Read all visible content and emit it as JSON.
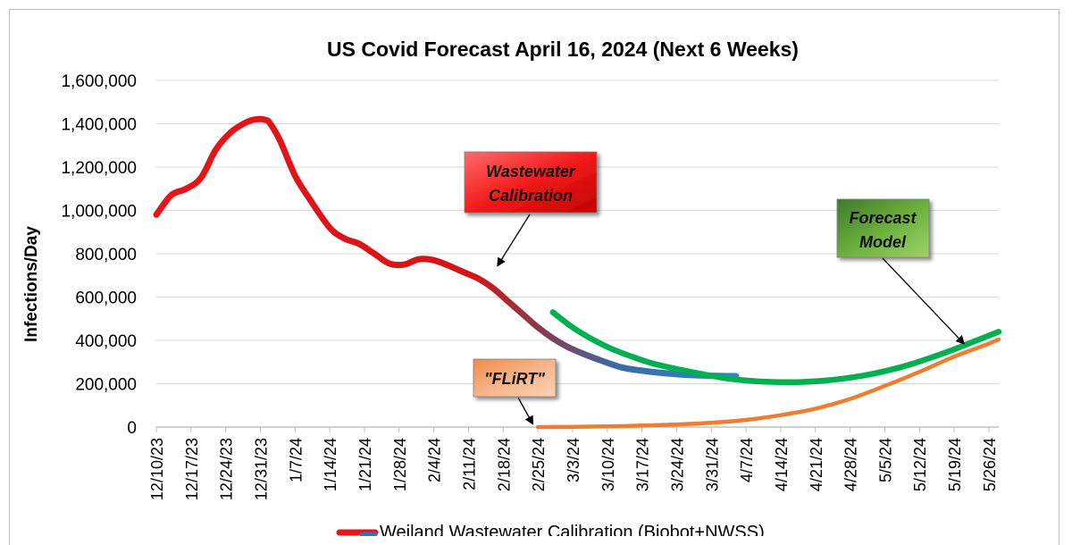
{
  "chart_data": {
    "type": "line",
    "title": "US Covid Forecast April 16, 2024 (Next 6 Weeks)",
    "ylabel": "Infections/Day",
    "xlabel": "",
    "ylim": [
      0,
      1600000
    ],
    "yticks": [
      {
        "value": 0,
        "label": "0"
      },
      {
        "value": 200000,
        "label": "200,000"
      },
      {
        "value": 400000,
        "label": "400,000"
      },
      {
        "value": 600000,
        "label": "600,000"
      },
      {
        "value": 800000,
        "label": "800,000"
      },
      {
        "value": 1000000,
        "label": "1,000,000"
      },
      {
        "value": 1200000,
        "label": "1,200,000"
      },
      {
        "value": 1400000,
        "label": "1,400,000"
      },
      {
        "value": 1600000,
        "label": "1,600,000"
      }
    ],
    "x_range_days": [
      0,
      170
    ],
    "xticks": [
      {
        "day": 0,
        "label": "12/10/23"
      },
      {
        "day": 7,
        "label": "12/17/23"
      },
      {
        "day": 14,
        "label": "12/24/23"
      },
      {
        "day": 21,
        "label": "12/31/23"
      },
      {
        "day": 28,
        "label": "1/7/24"
      },
      {
        "day": 35,
        "label": "1/14/24"
      },
      {
        "day": 42,
        "label": "1/21/24"
      },
      {
        "day": 49,
        "label": "1/28/24"
      },
      {
        "day": 56,
        "label": "2/4/24"
      },
      {
        "day": 63,
        "label": "2/11/24"
      },
      {
        "day": 70,
        "label": "2/18/24"
      },
      {
        "day": 77,
        "label": "2/25/24"
      },
      {
        "day": 84,
        "label": "3/3/24"
      },
      {
        "day": 91,
        "label": "3/10/24"
      },
      {
        "day": 98,
        "label": "3/17/24"
      },
      {
        "day": 105,
        "label": "3/24/24"
      },
      {
        "day": 112,
        "label": "3/31/24"
      },
      {
        "day": 119,
        "label": "4/7/24"
      },
      {
        "day": 126,
        "label": "4/14/24"
      },
      {
        "day": 133,
        "label": "4/21/24"
      },
      {
        "day": 140,
        "label": "4/28/24"
      },
      {
        "day": 147,
        "label": "5/5/24"
      },
      {
        "day": 154,
        "label": "5/12/24"
      },
      {
        "day": 161,
        "label": "5/19/24"
      },
      {
        "day": 168,
        "label": "5/26/24"
      }
    ],
    "series": [
      {
        "name": "Weiland Wastewater Calibration (Biobot+NWSS)",
        "color": "#e8141a",
        "color_end": "#2e75b6",
        "x": [
          0,
          3,
          6,
          9,
          12,
          15,
          18,
          20,
          22,
          23,
          25,
          28,
          31,
          35,
          38,
          41,
          44,
          47,
          50,
          53,
          56,
          59,
          62,
          65,
          68,
          71,
          74,
          77,
          80,
          83,
          86,
          90,
          94,
          98,
          102,
          106,
          110,
          114,
          117
        ],
        "values": [
          980000,
          1070000,
          1100000,
          1150000,
          1280000,
          1360000,
          1405000,
          1420000,
          1418000,
          1400000,
          1320000,
          1160000,
          1050000,
          920000,
          870000,
          845000,
          800000,
          755000,
          750000,
          775000,
          770000,
          745000,
          715000,
          685000,
          640000,
          580000,
          520000,
          460000,
          410000,
          370000,
          340000,
          305000,
          275000,
          260000,
          250000,
          242000,
          238000,
          236000,
          235000
        ]
      },
      {
        "name": "Forecast Model",
        "color": "#00b050",
        "x": [
          80,
          84,
          88,
          92,
          96,
          100,
          105,
          110,
          115,
          120,
          125,
          130,
          135,
          140,
          145,
          150,
          155,
          160,
          165,
          170
        ],
        "values": [
          530000,
          460000,
          405000,
          360000,
          325000,
          295000,
          268000,
          245000,
          225000,
          213000,
          208000,
          208000,
          215000,
          228000,
          248000,
          275000,
          310000,
          350000,
          395000,
          440000
        ]
      },
      {
        "name": "\"FLiRT\"",
        "color": "#ed7d31",
        "x": [
          77,
          84,
          91,
          98,
          105,
          112,
          119,
          126,
          133,
          140,
          147,
          154,
          161,
          168,
          170
        ],
        "values": [
          0,
          1000,
          3000,
          7000,
          12000,
          20000,
          33000,
          55000,
          85000,
          130000,
          190000,
          255000,
          325000,
          385000,
          405000
        ]
      }
    ],
    "annotations": [
      {
        "id": "wastewater",
        "line1": "Wastewater",
        "line2": "Calibration",
        "color": "#e8141a",
        "target_day": 70,
        "target_value": 730000
      },
      {
        "id": "forecast",
        "line1": "Forecast",
        "line2": "Model",
        "color": "#4e9a3a",
        "target_day": 164,
        "target_value": 370000
      },
      {
        "id": "flirt",
        "line1": "\"FLiRT\"",
        "line2": "",
        "color": "#f4a86e",
        "target_day": 77,
        "target_value": 0
      }
    ],
    "legend": {
      "position": "bottom",
      "visible_entry": "Weiland Wastewater Calibration (Biobot+NWSS)"
    }
  }
}
